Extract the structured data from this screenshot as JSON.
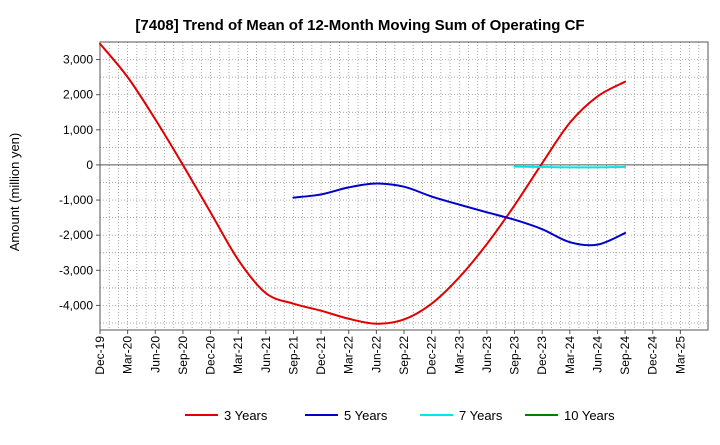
{
  "chart_data": {
    "type": "line",
    "title": "[7408]  Trend of Mean of 12-Month Moving Sum of Operating CF",
    "xlabel": "",
    "ylabel": "Amount (million yen)",
    "ylim": [
      -4700,
      3500
    ],
    "yticks": [
      3000,
      2000,
      1000,
      0,
      -1000,
      -2000,
      -3000,
      -4000
    ],
    "ytick_labels": [
      "3,000",
      "2,000",
      "1,000",
      "0",
      "-1,000",
      "-2,000",
      "-3,000",
      "-4,000"
    ],
    "x_categories": [
      "Dec-19",
      "Mar-20",
      "Jun-20",
      "Sep-20",
      "Dec-20",
      "Mar-21",
      "Jun-21",
      "Sep-21",
      "Dec-21",
      "Mar-22",
      "Jun-22",
      "Sep-22",
      "Dec-22",
      "Mar-23",
      "Jun-23",
      "Sep-23",
      "Dec-23",
      "Mar-24",
      "Jun-24",
      "Sep-24",
      "Dec-24",
      "Mar-25"
    ],
    "x_index_range": [
      0,
      66
    ],
    "grid": true,
    "legend_position": "bottom",
    "series": [
      {
        "name": "3 Years",
        "color": "#e00000",
        "points": [
          [
            0,
            3450
          ],
          [
            3,
            2500
          ],
          [
            6,
            1300
          ],
          [
            9,
            0
          ],
          [
            12,
            -1350
          ],
          [
            15,
            -2700
          ],
          [
            18,
            -3650
          ],
          [
            21,
            -3950
          ],
          [
            24,
            -4150
          ],
          [
            27,
            -4380
          ],
          [
            30,
            -4520
          ],
          [
            33,
            -4400
          ],
          [
            36,
            -3950
          ],
          [
            39,
            -3200
          ],
          [
            42,
            -2250
          ],
          [
            45,
            -1150
          ],
          [
            48,
            50
          ],
          [
            51,
            1200
          ],
          [
            54,
            1950
          ],
          [
            57,
            2370
          ]
        ]
      },
      {
        "name": "5 Years",
        "color": "#0000cc",
        "points": [
          [
            21,
            -930
          ],
          [
            24,
            -840
          ],
          [
            27,
            -640
          ],
          [
            30,
            -530
          ],
          [
            33,
            -620
          ],
          [
            36,
            -900
          ],
          [
            39,
            -1130
          ],
          [
            42,
            -1350
          ],
          [
            45,
            -1560
          ],
          [
            48,
            -1830
          ],
          [
            51,
            -2200
          ],
          [
            54,
            -2270
          ],
          [
            57,
            -1940
          ]
        ]
      },
      {
        "name": "7 Years",
        "color": "#00e5e5",
        "points": [
          [
            45,
            -50
          ],
          [
            48,
            -60
          ],
          [
            51,
            -70
          ],
          [
            54,
            -70
          ],
          [
            57,
            -60
          ]
        ]
      },
      {
        "name": "10 Years",
        "color": "#008000",
        "points": []
      }
    ]
  }
}
